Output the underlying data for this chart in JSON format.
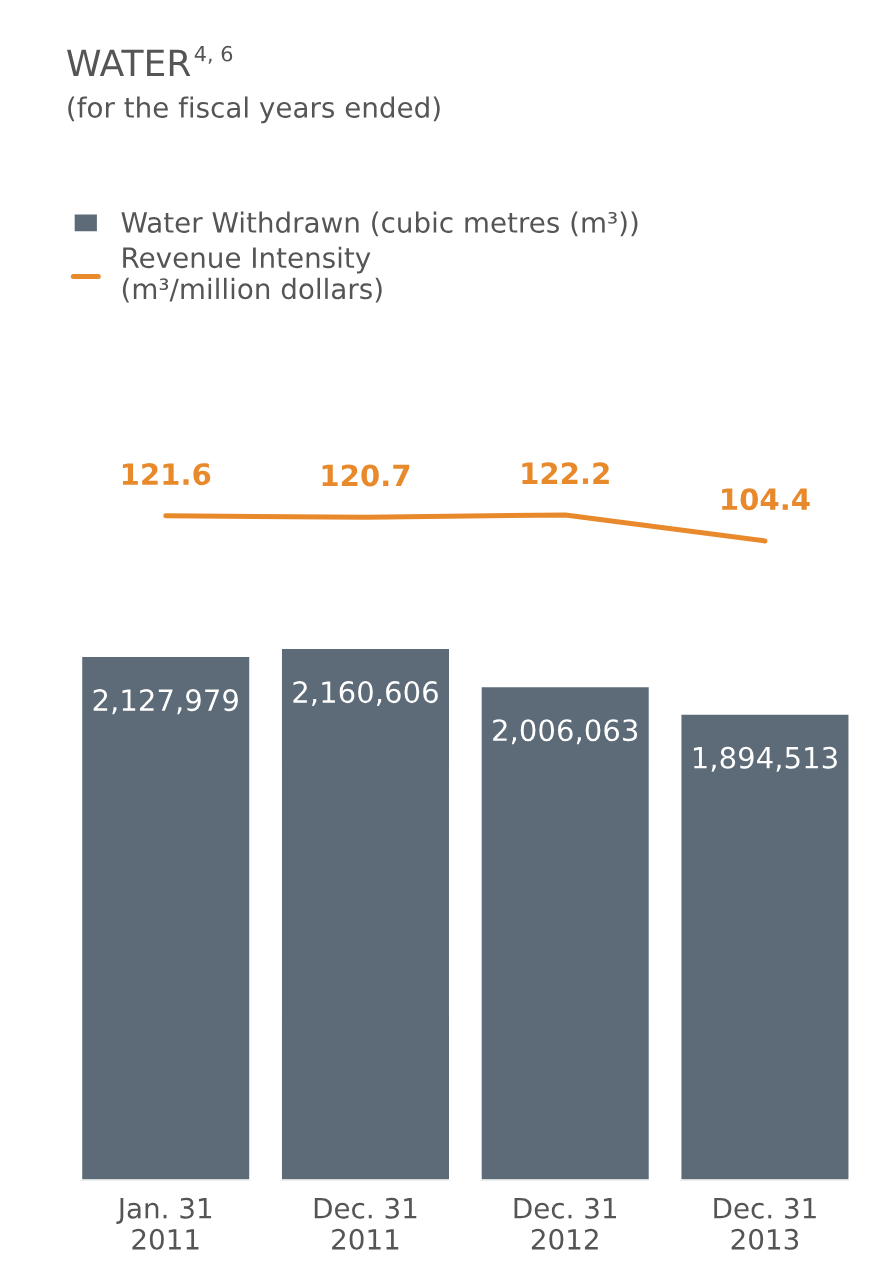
{
  "chart_data": [
    {
      "type": "line",
      "title": "WATER$^{4, 6}$",
      "subtitle": "(for the fiscal years ended)",
      "categories": [
        null,
        null,
        null,
        null
      ],
      "series": [
        {
          "name": "Revenue Intensity\n(m³/million dollars)",
          "color": "#e8892b",
          "values": [
            121.6,
            120.7,
            122.2,
            104.4
          ]
        }
      ],
      "data_labels": true,
      "legend": "top left",
      "marker": "none"
    },
    {
      "type": "bar",
      "categories": [
        "Jan. 31\n2011",
        "Dec. 31\n2011",
        "Dec. 31\n2012",
        "Dec. 31\n2013"
      ],
      "series": [
        {
          "name": "Water Withdrawn (cubic metres (m³))",
          "color": "#5c6b77",
          "values": [
            2127979,
            2160606,
            2006063,
            1894513
          ],
          "value_labels": [
            "2,127,979",
            "2,160,606",
            "2,006,063",
            "1,894,513"
          ]
        }
      ],
      "legend": "top left"
    }
  ]
}
